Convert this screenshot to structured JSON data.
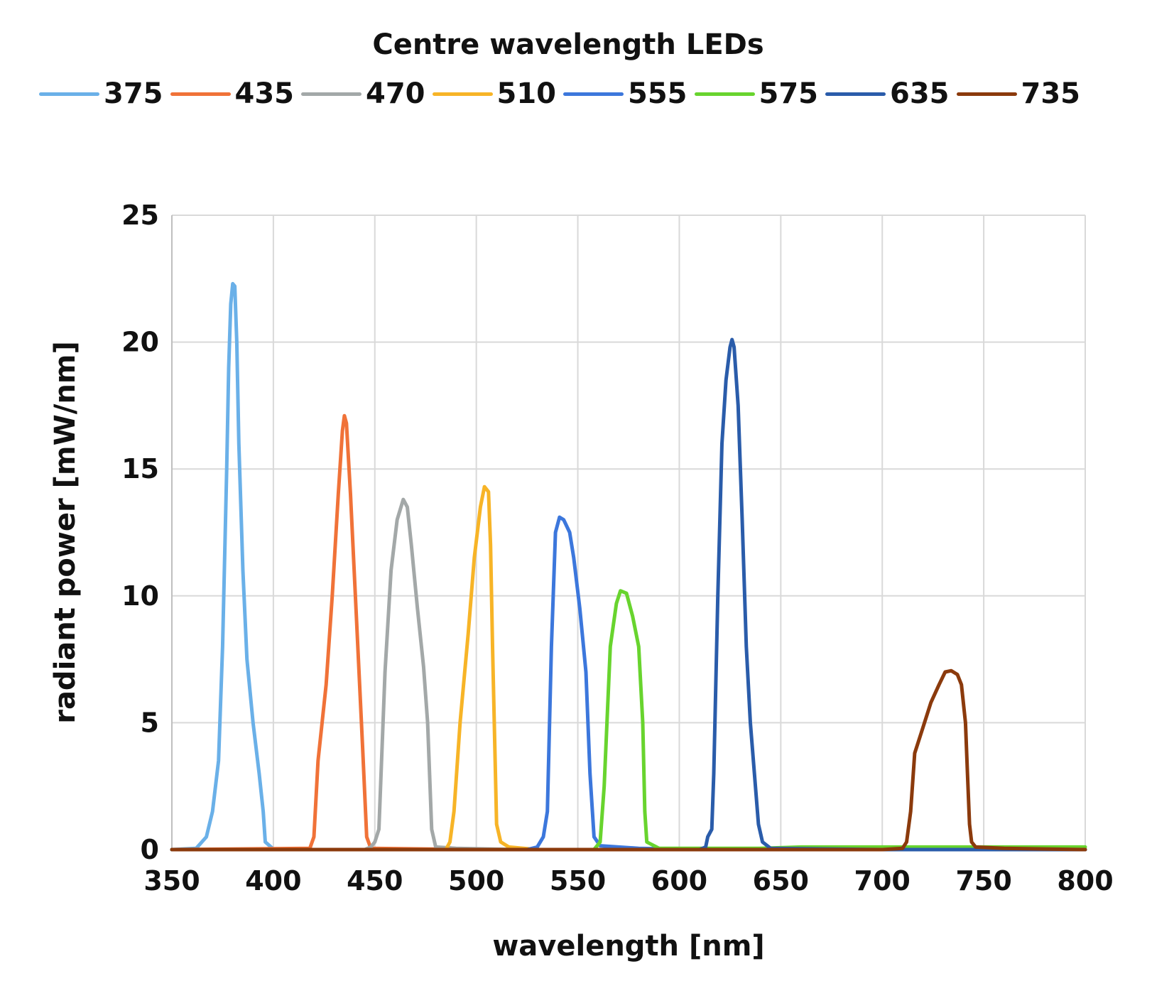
{
  "chart_data": {
    "type": "line",
    "title": "Centre wavelength LEDs",
    "xlabel": "wavelength [nm]",
    "ylabel": "radiant power [mW/nm]",
    "xlim": [
      350,
      800
    ],
    "ylim": [
      0,
      25
    ],
    "x_ticks": [
      "350",
      "400",
      "450",
      "500",
      "550",
      "600",
      "650",
      "700",
      "750",
      "800"
    ],
    "y_ticks": [
      "0",
      "5",
      "10",
      "15",
      "20",
      "25"
    ],
    "grid": true,
    "legend_position": "top",
    "series": [
      {
        "name": "375",
        "color": "#6ab0e8",
        "points": [
          [
            350,
            0
          ],
          [
            362,
            0.05
          ],
          [
            367,
            0.5
          ],
          [
            370,
            1.5
          ],
          [
            373,
            3.5
          ],
          [
            375,
            8
          ],
          [
            377,
            15
          ],
          [
            378,
            19
          ],
          [
            379,
            21.5
          ],
          [
            380,
            22.3
          ],
          [
            381,
            22.2
          ],
          [
            382,
            20
          ],
          [
            383,
            16
          ],
          [
            385,
            11
          ],
          [
            387,
            7.5
          ],
          [
            390,
            5
          ],
          [
            393,
            3
          ],
          [
            395,
            1.5
          ],
          [
            396,
            0.3
          ],
          [
            400,
            0.02
          ],
          [
            420,
            0
          ],
          [
            800,
            0
          ]
        ]
      },
      {
        "name": "435",
        "color": "#f07238",
        "points": [
          [
            350,
            0
          ],
          [
            418,
            0.05
          ],
          [
            420,
            0.5
          ],
          [
            422,
            3.5
          ],
          [
            426,
            6.5
          ],
          [
            429,
            10
          ],
          [
            432,
            14
          ],
          [
            434,
            16.5
          ],
          [
            435,
            17.1
          ],
          [
            436,
            16.8
          ],
          [
            438,
            14
          ],
          [
            441,
            9
          ],
          [
            444,
            4
          ],
          [
            446,
            0.5
          ],
          [
            448,
            0.05
          ],
          [
            500,
            0
          ],
          [
            800,
            0
          ]
        ]
      },
      {
        "name": "470",
        "color": "#a3a8a8",
        "points": [
          [
            350,
            0
          ],
          [
            445,
            0
          ],
          [
            448,
            0.1
          ],
          [
            450,
            0.3
          ],
          [
            452,
            0.8
          ],
          [
            455,
            7
          ],
          [
            458,
            11
          ],
          [
            461,
            13
          ],
          [
            464,
            13.8
          ],
          [
            466,
            13.5
          ],
          [
            468,
            12
          ],
          [
            471,
            9.5
          ],
          [
            474,
            7.2
          ],
          [
            476,
            5
          ],
          [
            478,
            0.8
          ],
          [
            480,
            0.1
          ],
          [
            490,
            0.05
          ],
          [
            520,
            0
          ],
          [
            800,
            0
          ]
        ]
      },
      {
        "name": "510",
        "color": "#f7b427",
        "points": [
          [
            350,
            0
          ],
          [
            485,
            0
          ],
          [
            487,
            0.3
          ],
          [
            489,
            1.5
          ],
          [
            492,
            5
          ],
          [
            496,
            8.5
          ],
          [
            499,
            11.5
          ],
          [
            502,
            13.5
          ],
          [
            504,
            14.3
          ],
          [
            506,
            14.1
          ],
          [
            507,
            12
          ],
          [
            508,
            8
          ],
          [
            510,
            1
          ],
          [
            512,
            0.3
          ],
          [
            516,
            0.1
          ],
          [
            530,
            0
          ],
          [
            800,
            0
          ]
        ]
      },
      {
        "name": "555",
        "color": "#3c77dc",
        "points": [
          [
            350,
            0
          ],
          [
            525,
            0
          ],
          [
            530,
            0.1
          ],
          [
            533,
            0.5
          ],
          [
            535,
            1.5
          ],
          [
            537,
            8
          ],
          [
            539,
            12.5
          ],
          [
            541,
            13.1
          ],
          [
            543,
            13
          ],
          [
            546,
            12.5
          ],
          [
            548,
            11.5
          ],
          [
            551,
            9.5
          ],
          [
            554,
            7
          ],
          [
            556,
            3
          ],
          [
            558,
            0.5
          ],
          [
            561,
            0.15
          ],
          [
            580,
            0.05
          ],
          [
            610,
            0
          ],
          [
            800,
            0
          ]
        ]
      },
      {
        "name": "575",
        "color": "#68d42e",
        "points": [
          [
            350,
            0
          ],
          [
            558,
            0
          ],
          [
            561,
            0.3
          ],
          [
            563,
            2.5
          ],
          [
            566,
            8
          ],
          [
            569,
            9.7
          ],
          [
            571,
            10.2
          ],
          [
            574,
            10.1
          ],
          [
            577,
            9.2
          ],
          [
            580,
            8
          ],
          [
            582,
            5
          ],
          [
            583,
            1.5
          ],
          [
            584,
            0.3
          ],
          [
            590,
            0.05
          ],
          [
            640,
            0.05
          ],
          [
            660,
            0.1
          ],
          [
            800,
            0.1
          ]
        ]
      },
      {
        "name": "635",
        "color": "#2a5caa",
        "points": [
          [
            350,
            0
          ],
          [
            610,
            0
          ],
          [
            613,
            0.1
          ],
          [
            614,
            0.5
          ],
          [
            616,
            0.8
          ],
          [
            617,
            3
          ],
          [
            619,
            10
          ],
          [
            621,
            16
          ],
          [
            623,
            18.5
          ],
          [
            625,
            19.8
          ],
          [
            626,
            20.1
          ],
          [
            627,
            19.8
          ],
          [
            629,
            17.5
          ],
          [
            631,
            13
          ],
          [
            633,
            8
          ],
          [
            635,
            5
          ],
          [
            637,
            3
          ],
          [
            639,
            1
          ],
          [
            641,
            0.3
          ],
          [
            645,
            0.05
          ],
          [
            700,
            0
          ],
          [
            800,
            0
          ]
        ]
      },
      {
        "name": "735",
        "color": "#8b3a0c",
        "points": [
          [
            350,
            0
          ],
          [
            700,
            0
          ],
          [
            710,
            0.05
          ],
          [
            712,
            0.3
          ],
          [
            714,
            1.5
          ],
          [
            716,
            3.8
          ],
          [
            720,
            4.8
          ],
          [
            724,
            5.8
          ],
          [
            728,
            6.5
          ],
          [
            731,
            7
          ],
          [
            734,
            7.05
          ],
          [
            737,
            6.9
          ],
          [
            739,
            6.5
          ],
          [
            741,
            5
          ],
          [
            742,
            3
          ],
          [
            743,
            1
          ],
          [
            744,
            0.3
          ],
          [
            746,
            0.1
          ],
          [
            760,
            0.05
          ],
          [
            800,
            0
          ]
        ]
      }
    ]
  }
}
